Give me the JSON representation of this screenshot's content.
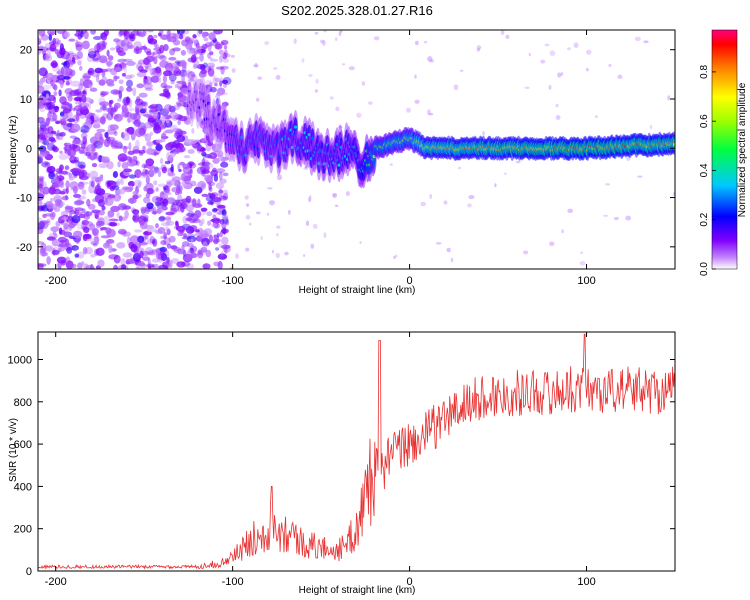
{
  "title": "S202.2025.328.01.27.R16",
  "chart_data": [
    {
      "type": "heatmap",
      "name": "spectrogram",
      "xlabel": "Height of straight line (km)",
      "ylabel": "Frequency (Hz)",
      "xlim": [
        -210,
        150
      ],
      "ylim": [
        -24.5,
        24
      ],
      "x_ticks": [
        -200,
        -100,
        0,
        100
      ],
      "x_tick_labels": [
        "-200",
        "-100",
        "0",
        "100"
      ],
      "y_ticks": [
        -20,
        -10,
        0,
        10,
        20
      ],
      "y_tick_labels": [
        "-20",
        "-10",
        "0",
        "10",
        "20"
      ],
      "colorbar": {
        "label": "Normalized spectral amplitude",
        "range": [
          0,
          0.97
        ],
        "ticks": [
          0.0,
          0.2,
          0.4,
          0.6,
          0.8
        ],
        "tick_labels": [
          "0.0",
          "0.2",
          "0.4",
          "0.6",
          "0.8"
        ],
        "colors": [
          "#ffffff",
          "#a000ff",
          "#0000ff",
          "#00e0ff",
          "#00ff00",
          "#ffff00",
          "#ff6000",
          "#ff0066"
        ]
      },
      "ridge": {
        "description_points_x": [
          -120,
          -105,
          -95,
          -85,
          -75,
          -65,
          -55,
          -45,
          -35,
          -28,
          -20,
          -10,
          0,
          10,
          50,
          100,
          150
        ],
        "frequency_y": [
          10,
          4,
          0,
          2,
          0,
          2,
          0,
          -2,
          0,
          -3,
          0,
          1,
          2,
          0,
          0,
          0,
          1
        ],
        "amplitude": [
          0.15,
          0.2,
          0.3,
          0.3,
          0.3,
          0.35,
          0.35,
          0.35,
          0.35,
          0.4,
          0.55,
          0.6,
          0.6,
          0.75,
          0.8,
          0.85,
          0.8
        ]
      },
      "noise_region_x": [
        -210,
        -115
      ]
    },
    {
      "type": "line",
      "name": "snr",
      "xlabel": "Height of straight line (km)",
      "ylabel": "SNR (10 * v/v)",
      "xlim": [
        -210,
        150
      ],
      "ylim": [
        0,
        1130
      ],
      "x_ticks": [
        -200,
        -100,
        0,
        100
      ],
      "x_tick_labels": [
        "-200",
        "-100",
        "0",
        "100"
      ],
      "y_ticks": [
        0,
        200,
        400,
        600,
        800,
        1000
      ],
      "y_tick_labels": [
        "0",
        "200",
        "400",
        "600",
        "800",
        "1000"
      ],
      "color": "#e83030",
      "trend_x": [
        -210,
        -120,
        -105,
        -95,
        -85,
        -78,
        -70,
        -60,
        -50,
        -40,
        -35,
        -30,
        -25,
        -22,
        -19,
        -17,
        -15,
        -12,
        -8,
        -4,
        0,
        5,
        10,
        15,
        20,
        30,
        40,
        50,
        60,
        70,
        80,
        90,
        100,
        110,
        120,
        130,
        140,
        150
      ],
      "trend_y": [
        20,
        20,
        40,
        100,
        180,
        220,
        190,
        130,
        110,
        100,
        130,
        200,
        350,
        450,
        550,
        500,
        480,
        530,
        560,
        580,
        600,
        620,
        650,
        690,
        720,
        780,
        820,
        830,
        840,
        850,
        840,
        860,
        860,
        850,
        860,
        860,
        850,
        860
      ],
      "peaks_x": [
        -78,
        -17,
        99
      ],
      "peaks_y": [
        400,
        1090,
        1120
      ]
    }
  ]
}
